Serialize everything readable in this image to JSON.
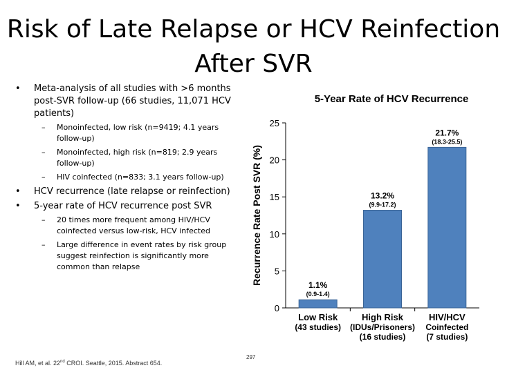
{
  "slide": {
    "title_line1": "Risk of Late Relapse or HCV Reinfection",
    "title_line2": "After SVR"
  },
  "bullets": [
    {
      "text": "Meta-analysis of all studies with >6 months post-SVR follow-up (66 studies, 11,071 HCV patients)",
      "sub": [
        "Monoinfected, low risk (n=9419; 4.1 years follow-up)",
        "Monoinfected, high risk (n=819; 2.9 years follow-up)",
        "HIV coinfected (n=833; 3.1 years follow-up)"
      ]
    },
    {
      "text": "HCV recurrence (late relapse or reinfection)",
      "sub": []
    },
    {
      "text": "5-year rate of HCV recurrence post SVR",
      "sub": [
        "20 times more frequent among HIV/HCV coinfected versus low-risk, HCV infected",
        "Large difference in event rates by risk group suggest reinfection is significantly more common than relapse"
      ]
    }
  ],
  "bullet_markers": {
    "level1": "•",
    "level2": "–"
  },
  "footer": {
    "citation_pre": "Hill AM, et al. 22",
    "citation_sup": "nd",
    "citation_post": " CROI. Seattle, 2015. Abstract 654.",
    "page_number": "297"
  },
  "colors": {
    "bar": "#4f81bd",
    "bar_edge": "#3a6496"
  },
  "chart_data": {
    "type": "bar",
    "title": "5-Year Rate of HCV Recurrence",
    "ylabel": "Recurrence Rate Post SVR (%)",
    "ylim": [
      0,
      25
    ],
    "yticks": [
      0,
      5,
      10,
      15,
      20,
      25
    ],
    "grid": false,
    "categories": [
      [
        "Low Risk",
        "(43 studies)"
      ],
      [
        "High Risk",
        "(IDUs/Prisoners)",
        "(16 studies)"
      ],
      [
        "HIV/HCV",
        "Coinfected",
        "(7 studies)"
      ]
    ],
    "values": [
      1.1,
      13.2,
      21.7
    ],
    "value_labels": [
      "1.1%",
      "13.2%",
      "21.7%"
    ],
    "ci_labels": [
      "(0.9-1.4)",
      "(9.9-17.2)",
      "(18.3-25.5)"
    ]
  }
}
